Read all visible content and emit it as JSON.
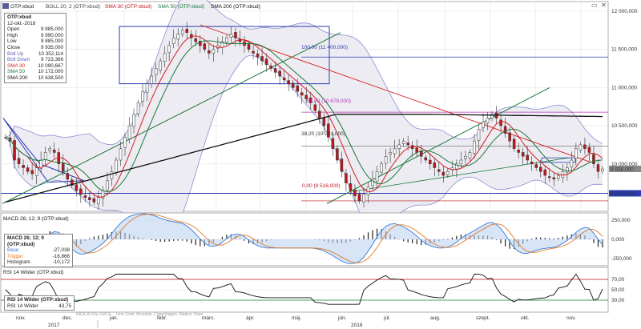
{
  "legend": {
    "symbol": "OTP:xbud",
    "boll": "BOLL 20; 2 (OTP:xbud)",
    "sma30": "SMA 30 (OTP:xbud)",
    "sma50": "SMA 50 (OTP:xbud)",
    "sma200": "SMA 200 (OTP:xbud)"
  },
  "ohlc_box": {
    "title": "OTP:xbud",
    "date": "12-okt.-2018",
    "rows": [
      {
        "label": "Open",
        "value": "9 885,000"
      },
      {
        "label": "High",
        "value": "9 990,000"
      },
      {
        "label": "Low",
        "value": "9 885,000"
      },
      {
        "label": "Close",
        "value": "9 935,000"
      },
      {
        "label": "Boll Up",
        "value": "10 352,114"
      },
      {
        "label": "Boll Down",
        "value": "9 723,386"
      },
      {
        "label": "SMA 30",
        "value": "10 090,667"
      },
      {
        "label": "SMA 50",
        "value": "10 172,000"
      },
      {
        "label": "SMA 200",
        "value": "10 638,500"
      }
    ]
  },
  "macd_box": {
    "title": "MACD 26; 12; 9 (OTP:xbud)",
    "rows": [
      {
        "label": "Base",
        "value": "-27,038"
      },
      {
        "label": "Trigger",
        "value": "-16,866"
      },
      {
        "label": "Histogram",
        "value": "-10,172"
      }
    ]
  },
  "rsi_box": {
    "title": "RSI 14 Wilder (OTP:xbud)",
    "rows": [
      {
        "label": "RSI 14 Wilder",
        "value": "43,75"
      }
    ]
  },
  "macd_legend": "MACD 26; 12; 9 (OTP:xbud)",
  "rsi_legend": "RSI 14 Wilder (OTP:xbud)",
  "watermark": "INDICATIVE PRICE - Time Zone: Brussels, Copenhagen, Madrid, Paris",
  "fib_labels": {
    "f100": "100,00 (11 400,000)",
    "f618": "61,80 (10 678,000)",
    "f382": "38,20 (10 231,000)",
    "f0": "0,00 (9 516,000)"
  },
  "price_tags": {
    "last": "9 935,000",
    "support": "9 615,000"
  },
  "axis": {
    "price_ticks": [
      "12 000,000",
      "11 500,000",
      "11 000,000",
      "10 500,000",
      "10 000,000"
    ],
    "macd_ticks": [
      "250,000",
      "0,000",
      "-250,000"
    ],
    "rsi_ticks": [
      "70,00",
      "50,00",
      "30,00"
    ],
    "months": [
      "nov.",
      "dec.",
      "jan.",
      "febr.",
      "márc.",
      "ápr.",
      "máj.",
      "jún.",
      "júl.",
      "aug.",
      "szept.",
      "okt.",
      "nov."
    ],
    "years": [
      "2017",
      "2018"
    ]
  },
  "colors": {
    "up": "#ffffff",
    "down": "#c0161b",
    "boll": "#8b8fd6",
    "sma30": "#d42020",
    "sma50": "#1d7a3a",
    "sma200": "#111111",
    "trend_blue": "#2b3bb0",
    "fib": "#b63ab6"
  },
  "chart_data": {
    "type": "line",
    "title": "",
    "ylim": [
      9400,
      12000
    ],
    "closes": [
      10350,
      10300,
      10050,
      10000,
      9950,
      9900,
      9870,
      9950,
      10050,
      10150,
      10200,
      10150,
      10000,
      9900,
      9800,
      9720,
      9650,
      9600,
      9560,
      9530,
      9500,
      9560,
      9650,
      9780,
      9900,
      10050,
      10200,
      10350,
      10500,
      10650,
      10800,
      10950,
      11050,
      11150,
      11250,
      11350,
      11450,
      11550,
      11650,
      11700,
      11750,
      11720,
      11650,
      11600,
      11550,
      11500,
      11450,
      11500,
      11550,
      11600,
      11650,
      11700,
      11650,
      11600,
      11550,
      11500,
      11450,
      11400,
      11350,
      11300,
      11250,
      11200,
      11150,
      11100,
      11050,
      11000,
      10950,
      10900,
      10850,
      10800,
      10700,
      10600,
      10500,
      10350,
      10200,
      10050,
      9900,
      9750,
      9650,
      9580,
      9520,
      9600,
      9700,
      9800,
      9900,
      10000,
      10100,
      10150,
      10200,
      10250,
      10300,
      10250,
      10200,
      10150,
      10100,
      10050,
      10000,
      9950,
      9900,
      9850,
      9900,
      9950,
      10000,
      10050,
      10100,
      10150,
      10300,
      10450,
      10550,
      10600,
      10650,
      10600,
      10500,
      10400,
      10300,
      10200,
      10150,
      10100,
      10050,
      10000,
      9950,
      9900,
      9850,
      9820,
      9800,
      9850,
      9900,
      9950,
      10050,
      10200,
      10250,
      10200,
      10150,
      10000,
      9900,
      9935
    ]
  }
}
